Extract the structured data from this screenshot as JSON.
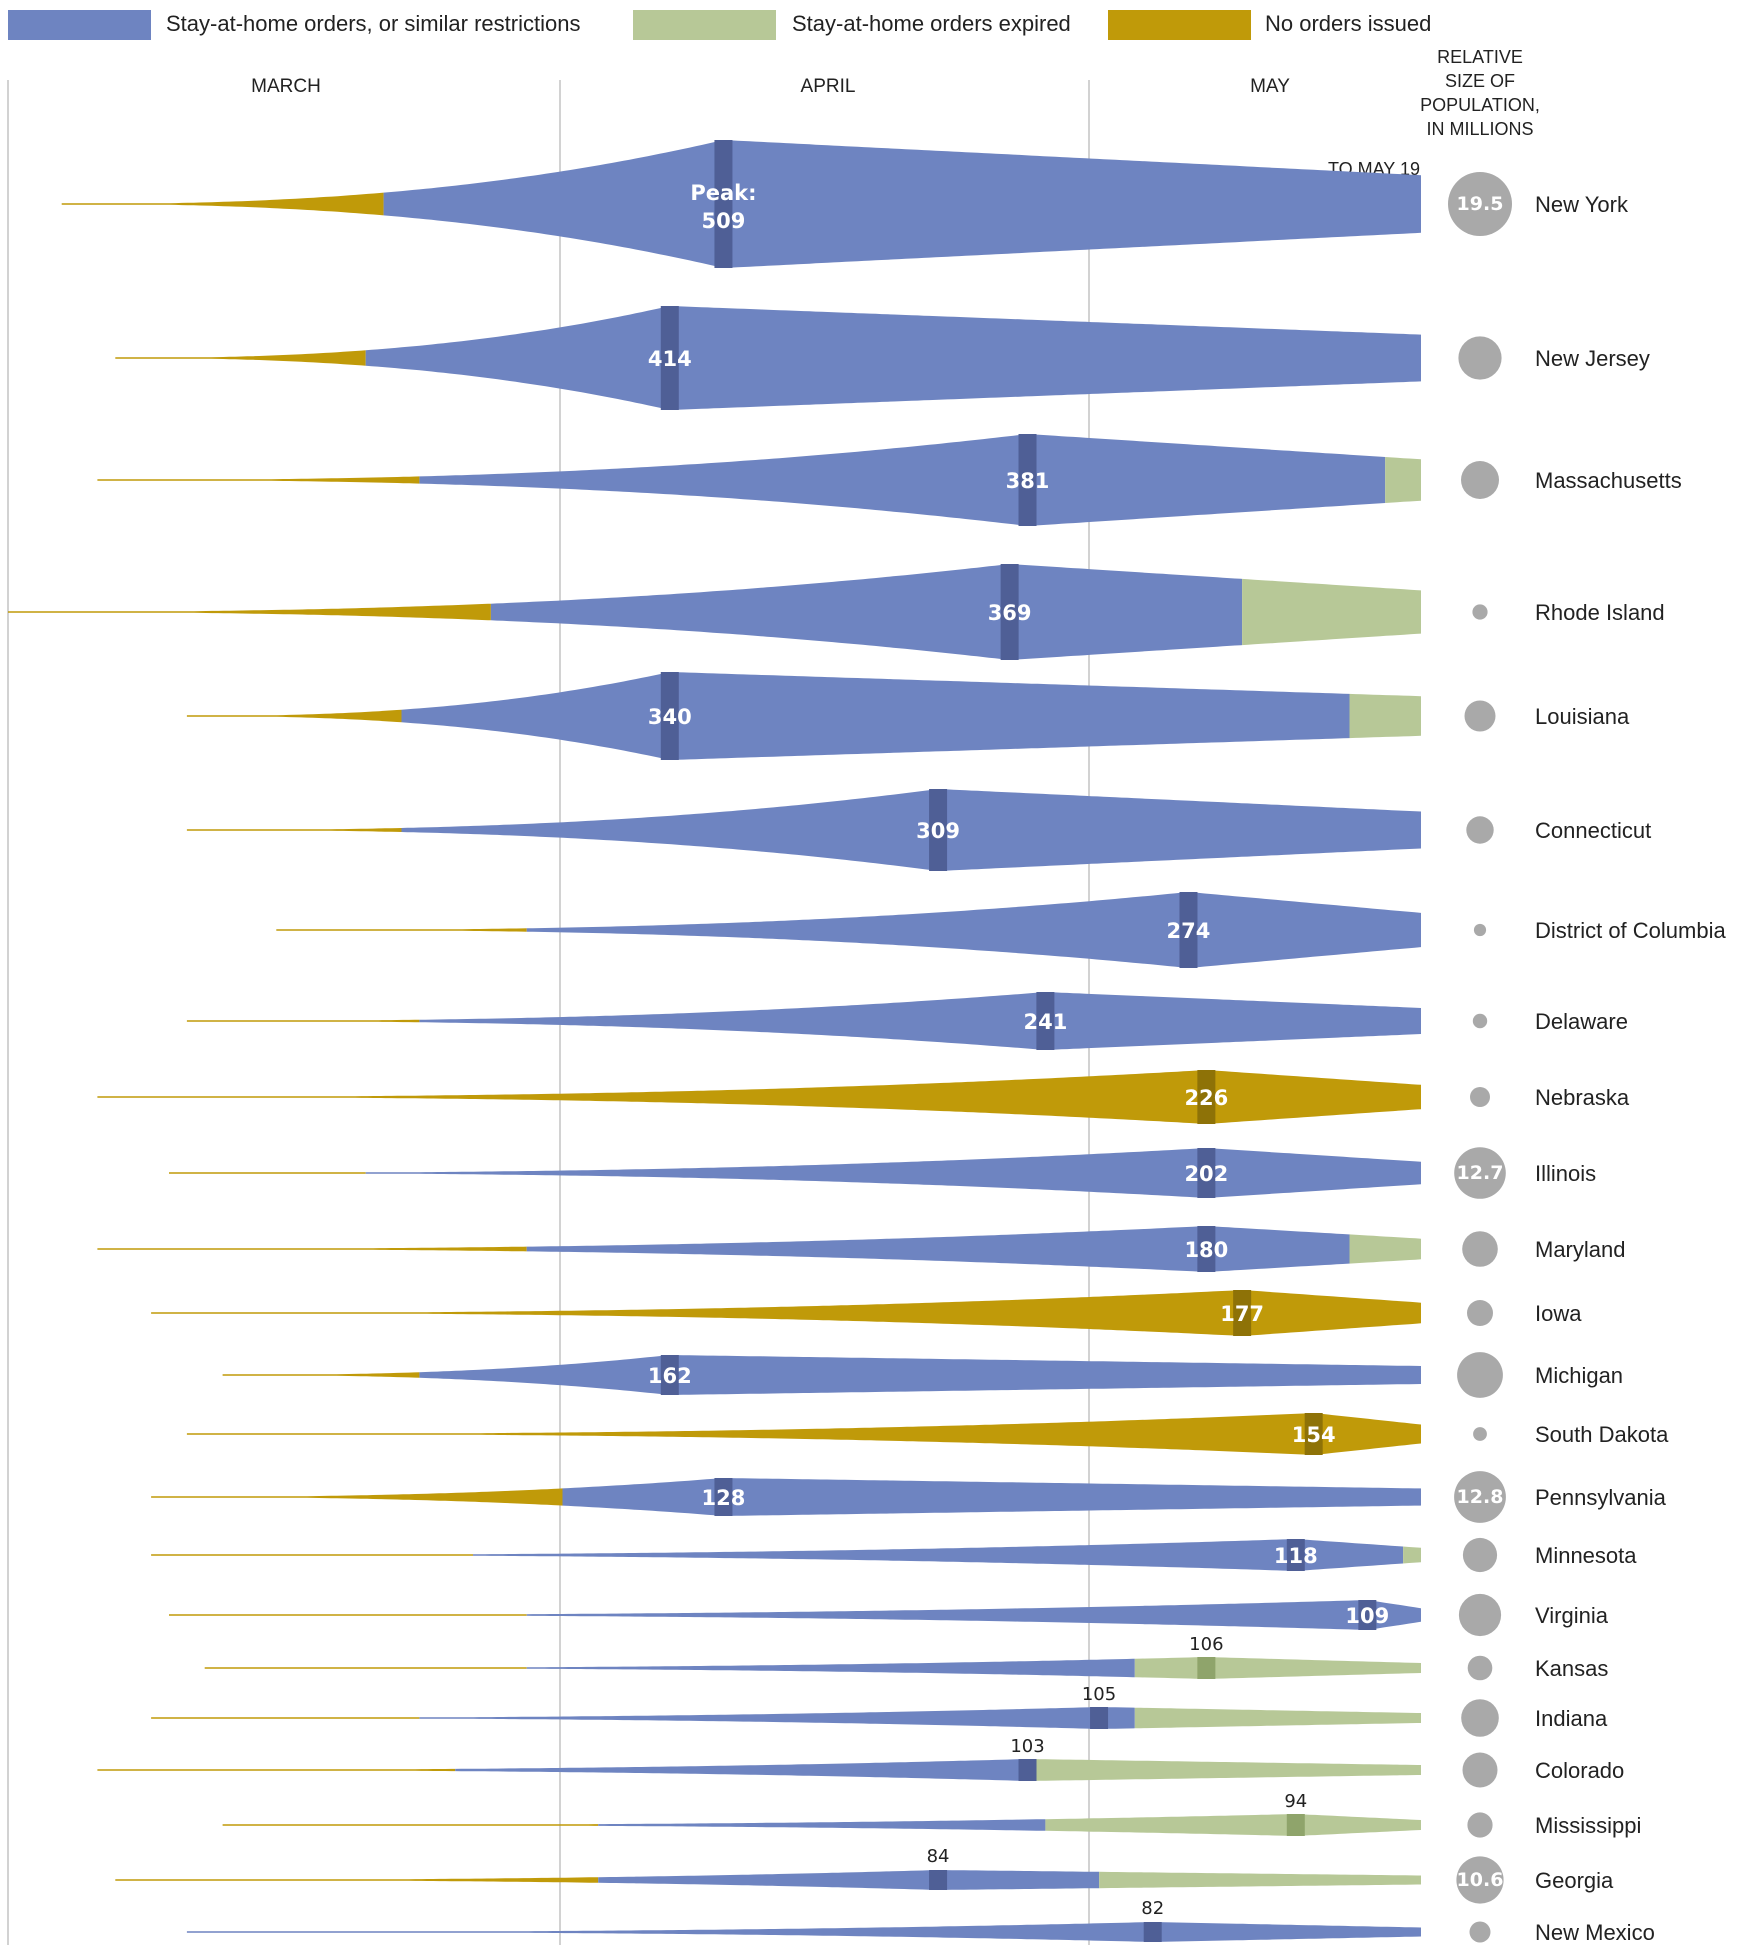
{
  "colors": {
    "stay": "#6e84c1",
    "expired": "#b7c897",
    "none": "#c09a09",
    "marker_stay": "#4f5f96",
    "marker_expired": "#8fa46b",
    "marker_none": "#8e7207",
    "bubble": "#a9a9a9",
    "gridline": "#c4c4c4"
  },
  "legend": [
    {
      "key": "stay",
      "label": "Stay-at-home orders, or similar restrictions"
    },
    {
      "key": "expired",
      "label": "Stay-at-home orders expired"
    },
    {
      "key": "none",
      "label": "No orders issued"
    }
  ],
  "months": [
    "MARCH",
    "APRIL",
    "MAY"
  ],
  "population_header": [
    "RELATIVE",
    "SIZE OF",
    "POPULATION,",
    "IN MILLIONS"
  ],
  "end_note": "TO MAY 19",
  "peak_prefix": "Peak:",
  "chart_data": {
    "type": "area",
    "x_range": [
      "2020-03-01",
      "2020-05-19"
    ],
    "value_meaning": "peak daily value per state",
    "series": [
      {
        "state": "New York",
        "peak": 509,
        "peak_date": "2020-04-10",
        "first_date": "2020-03-04",
        "stay_start": "2020-03-22",
        "expired_date": null,
        "orders": "stay",
        "population_millions": 19.5
      },
      {
        "state": "New Jersey",
        "peak": 414,
        "peak_date": "2020-04-07",
        "first_date": "2020-03-07",
        "stay_start": "2020-03-21",
        "expired_date": null,
        "orders": "stay",
        "population_millions": 8.9
      },
      {
        "state": "Massachusetts",
        "peak": 381,
        "peak_date": "2020-04-27",
        "first_date": "2020-03-06",
        "stay_start": "2020-03-24",
        "expired_date": "2020-05-17",
        "orders": "stay",
        "population_millions": 6.9
      },
      {
        "state": "Rhode Island",
        "peak": 369,
        "peak_date": "2020-04-26",
        "first_date": "2020-03-01",
        "stay_start": "2020-03-28",
        "expired_date": "2020-05-09",
        "orders": "stay",
        "population_millions": 1.1
      },
      {
        "state": "Louisiana",
        "peak": 340,
        "peak_date": "2020-04-07",
        "first_date": "2020-03-11",
        "stay_start": "2020-03-23",
        "expired_date": "2020-05-15",
        "orders": "stay",
        "population_millions": 4.6
      },
      {
        "state": "Connecticut",
        "peak": 309,
        "peak_date": "2020-04-22",
        "first_date": "2020-03-11",
        "stay_start": "2020-03-23",
        "expired_date": null,
        "orders": "stay",
        "population_millions": 3.6
      },
      {
        "state": "District of Columbia",
        "peak": 274,
        "peak_date": "2020-05-06",
        "first_date": "2020-03-16",
        "stay_start": "2020-03-30",
        "expired_date": null,
        "orders": "stay",
        "population_millions": 0.7
      },
      {
        "state": "Delaware",
        "peak": 241,
        "peak_date": "2020-04-28",
        "first_date": "2020-03-11",
        "stay_start": "2020-03-24",
        "expired_date": null,
        "orders": "stay",
        "population_millions": 1.0
      },
      {
        "state": "Nebraska",
        "peak": 226,
        "peak_date": "2020-05-07",
        "first_date": "2020-03-06",
        "stay_start": null,
        "expired_date": null,
        "orders": "none",
        "population_millions": 1.9
      },
      {
        "state": "Illinois",
        "peak": 202,
        "peak_date": "2020-05-07",
        "first_date": "2020-03-10",
        "stay_start": "2020-03-21",
        "expired_date": null,
        "orders": "stay",
        "population_millions": 12.7
      },
      {
        "state": "Maryland",
        "peak": 180,
        "peak_date": "2020-05-07",
        "first_date": "2020-03-06",
        "stay_start": "2020-03-30",
        "expired_date": "2020-05-15",
        "orders": "stay",
        "population_millions": 6.0
      },
      {
        "state": "Iowa",
        "peak": 177,
        "peak_date": "2020-05-09",
        "first_date": "2020-03-09",
        "stay_start": null,
        "expired_date": null,
        "orders": "none",
        "population_millions": 3.2
      },
      {
        "state": "Michigan",
        "peak": 162,
        "peak_date": "2020-04-07",
        "first_date": "2020-03-13",
        "stay_start": "2020-03-24",
        "expired_date": null,
        "orders": "stay",
        "population_millions": 10.0
      },
      {
        "state": "South Dakota",
        "peak": 154,
        "peak_date": "2020-05-13",
        "first_date": "2020-03-11",
        "stay_start": null,
        "expired_date": null,
        "orders": "none",
        "population_millions": 0.9
      },
      {
        "state": "Pennsylvania",
        "peak": 128,
        "peak_date": "2020-04-10",
        "first_date": "2020-03-09",
        "stay_start": "2020-04-01",
        "expired_date": null,
        "orders": "stay",
        "population_millions": 12.8
      },
      {
        "state": "Minnesota",
        "peak": 118,
        "peak_date": "2020-05-12",
        "first_date": "2020-03-09",
        "stay_start": "2020-03-27",
        "expired_date": "2020-05-18",
        "orders": "stay",
        "population_millions": 5.6
      },
      {
        "state": "Virginia",
        "peak": 109,
        "peak_date": "2020-05-16",
        "first_date": "2020-03-10",
        "stay_start": "2020-03-30",
        "expired_date": null,
        "orders": "stay",
        "population_millions": 8.5
      },
      {
        "state": "Kansas",
        "peak": 106,
        "peak_date": "2020-05-07",
        "first_date": "2020-03-12",
        "stay_start": "2020-03-30",
        "expired_date": "2020-05-03",
        "orders": "stay",
        "population_millions": 2.9
      },
      {
        "state": "Indiana",
        "peak": 105,
        "peak_date": "2020-05-01",
        "first_date": "2020-03-09",
        "stay_start": "2020-03-24",
        "expired_date": "2020-05-03",
        "orders": "stay",
        "population_millions": 6.7
      },
      {
        "state": "Colorado",
        "peak": 103,
        "peak_date": "2020-04-27",
        "first_date": "2020-03-06",
        "stay_start": "2020-03-26",
        "expired_date": "2020-04-27",
        "orders": "stay",
        "population_millions": 5.8
      },
      {
        "state": "Mississippi",
        "peak": 94,
        "peak_date": "2020-05-12",
        "first_date": "2020-03-13",
        "stay_start": "2020-04-03",
        "expired_date": "2020-04-28",
        "orders": "stay",
        "population_millions": 3.0
      },
      {
        "state": "Georgia",
        "peak": 84,
        "peak_date": "2020-04-22",
        "first_date": "2020-03-07",
        "stay_start": "2020-04-03",
        "expired_date": "2020-05-01",
        "orders": "stay",
        "population_millions": 10.6
      },
      {
        "state": "New Mexico",
        "peak": 82,
        "peak_date": "2020-05-04",
        "first_date": "2020-03-11",
        "stay_start": null,
        "expired_date": null,
        "orders": "stay",
        "population_millions": 2.1
      }
    ]
  }
}
